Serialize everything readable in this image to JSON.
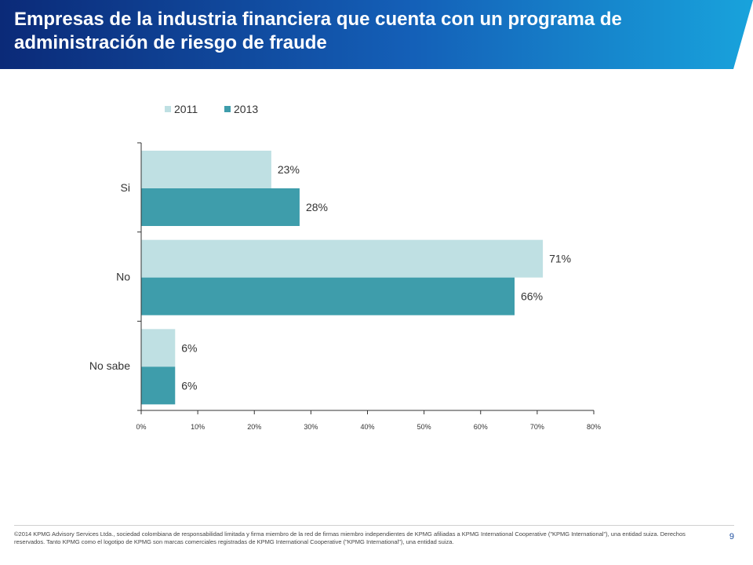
{
  "header": {
    "title": "Empresas de la industria financiera que cuenta con un programa de administración de riesgo de fraude",
    "gradient_start": "#0b2a78",
    "gradient_end": "#18a3dc"
  },
  "chart_data": {
    "type": "bar",
    "orientation": "horizontal",
    "categories": [
      "Si",
      "No",
      "No sabe"
    ],
    "series": [
      {
        "name": "2011",
        "values": [
          23,
          71,
          6
        ],
        "labels": [
          "23%",
          "71%",
          "6%"
        ],
        "color": "#bfe0e3"
      },
      {
        "name": "2013",
        "values": [
          28,
          66,
          6
        ],
        "labels": [
          "28%",
          "66%",
          "6%"
        ],
        "color": "#3e9dab"
      }
    ],
    "xlim": [
      0,
      80
    ],
    "x_ticks": [
      0,
      10,
      20,
      30,
      40,
      50,
      60,
      70,
      80
    ],
    "x_tick_labels": [
      "0%",
      "10%",
      "20%",
      "30%",
      "40%",
      "50%",
      "60%",
      "70%",
      "80%"
    ],
    "legend_position": "top",
    "grid": false
  },
  "footer": {
    "text": "©2014 KPMG Advisory Services Ltda., sociedad colombiana de responsabilidad limitada y firma miembro de la red de firmas miembro independientes de KPMG afiliadas a KPMG International Cooperative (\"KPMG International\"), una entidad suiza. Derechos reservados. Tanto KPMG como el logotipo de KPMG son marcas comerciales registradas de KPMG International Cooperative (\"KPMG International\"), una entidad suiza.",
    "page_number": "9"
  }
}
